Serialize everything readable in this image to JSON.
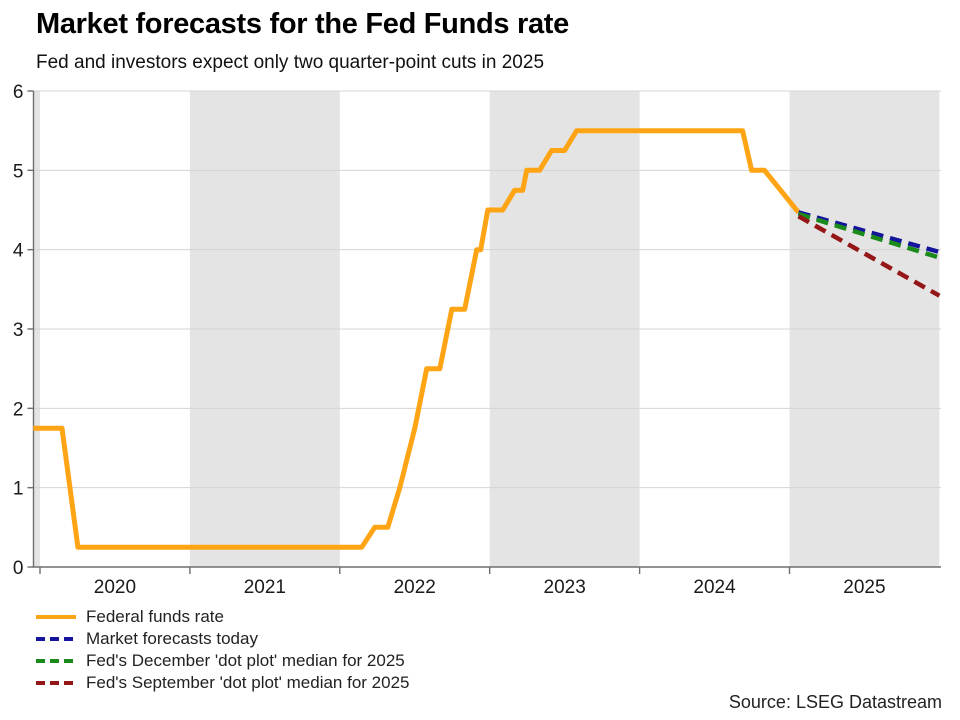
{
  "header": {
    "title": "Market forecasts for the Fed Funds rate",
    "subtitle": "Fed and investors expect only two quarter-point cuts in 2025"
  },
  "source": "Source: LSEG Datastream",
  "chart_data": {
    "type": "line",
    "title": "Market forecasts for the Fed Funds rate",
    "subtitle": "Fed and investors expect only two quarter-point cuts in 2025",
    "xlabel": "",
    "ylabel": "",
    "ylim": [
      0,
      6
    ],
    "x_domain": [
      2019.955,
      2026.007
    ],
    "y_ticks": [
      "0",
      "1",
      "2",
      "3",
      "4",
      "5",
      "6"
    ],
    "x_ticks": [
      {
        "year": 2020,
        "label": "2020"
      },
      {
        "year": 2021,
        "label": "2021"
      },
      {
        "year": 2022,
        "label": "2022"
      },
      {
        "year": 2023,
        "label": "2023"
      },
      {
        "year": 2024,
        "label": "2024"
      },
      {
        "year": 2025,
        "label": "2025"
      }
    ],
    "shaded_years": [
      2019,
      2021,
      2023,
      2025
    ],
    "colors": {
      "band": "#e4e4e4",
      "grid": "#d4d4d4",
      "axis": "#6e6e6e",
      "tick_label": "#1a1a1a"
    },
    "legend_position": "bottom-left",
    "grid": true,
    "series": [
      {
        "name": "Federal funds rate",
        "color": "#ffa414",
        "dash": false,
        "points": [
          [
            2019.955,
            1.75
          ],
          [
            2020.147,
            1.75
          ],
          [
            2020.253,
            0.25
          ],
          [
            2022.147,
            0.25
          ],
          [
            2022.233,
            0.5
          ],
          [
            2022.32,
            0.5
          ],
          [
            2022.4,
            1.0
          ],
          [
            2022.5,
            1.75
          ],
          [
            2022.58,
            2.5
          ],
          [
            2022.667,
            2.5
          ],
          [
            2022.747,
            3.25
          ],
          [
            2022.833,
            3.25
          ],
          [
            2022.913,
            4.0
          ],
          [
            2022.94,
            4.0
          ],
          [
            2022.987,
            4.5
          ],
          [
            2023.087,
            4.5
          ],
          [
            2023.167,
            4.75
          ],
          [
            2023.22,
            4.75
          ],
          [
            2023.247,
            5.0
          ],
          [
            2023.333,
            5.0
          ],
          [
            2023.413,
            5.25
          ],
          [
            2023.5,
            5.25
          ],
          [
            2023.58,
            5.5
          ],
          [
            2024.687,
            5.5
          ],
          [
            2024.747,
            5.0
          ],
          [
            2024.833,
            5.0
          ],
          [
            2025.06,
            4.47
          ]
        ]
      },
      {
        "name": "Market forecasts today",
        "color": "#14149c",
        "dash": true,
        "points": [
          [
            2025.06,
            4.47
          ],
          [
            2026.0,
            3.97
          ]
        ]
      },
      {
        "name": "Fed's December 'dot plot' median for 2025",
        "color": "#1a8a1a",
        "dash": true,
        "points": [
          [
            2025.06,
            4.45
          ],
          [
            2026.0,
            3.9
          ]
        ]
      },
      {
        "name": "Fed's September 'dot plot' median for 2025",
        "color": "#941616",
        "dash": true,
        "points": [
          [
            2025.06,
            4.42
          ],
          [
            2026.0,
            3.42
          ]
        ]
      }
    ]
  }
}
